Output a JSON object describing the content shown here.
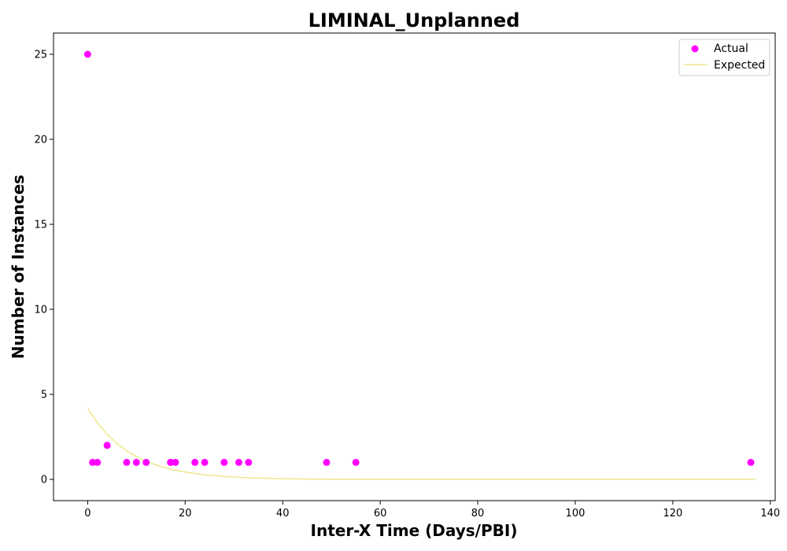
{
  "chart_data": {
    "type": "scatter",
    "title": "LIMINAL_Unplanned",
    "xlabel": "Inter-X Time (Days/PBI)",
    "ylabel": "Number of Instances",
    "xlim": [
      -7,
      141
    ],
    "ylim": [
      -1.25,
      26.25
    ],
    "xticks": [
      0,
      20,
      40,
      60,
      80,
      100,
      120,
      140
    ],
    "yticks": [
      0,
      5,
      10,
      15,
      20,
      25
    ],
    "grid": false,
    "legend_position": "top-right",
    "series": [
      {
        "name": "Actual",
        "kind": "scatter",
        "color": "#ff00ff",
        "x": [
          0,
          1,
          2,
          4,
          8,
          10,
          12,
          17,
          18,
          22,
          24,
          28,
          31,
          33,
          49,
          55,
          136
        ],
        "y": [
          25,
          1,
          1,
          2,
          1,
          1,
          1,
          1,
          1,
          1,
          1,
          1,
          1,
          1,
          1,
          1,
          1
        ]
      },
      {
        "name": "Expected",
        "kind": "line",
        "color": "#f0e68c",
        "x": [
          0,
          2,
          4,
          6,
          8,
          10,
          12,
          14,
          16,
          18,
          20,
          24,
          28,
          32,
          36,
          40,
          45,
          50,
          55,
          60,
          70,
          80,
          90,
          100,
          110,
          120,
          130,
          137
        ],
        "y": [
          4.18,
          3.33,
          2.65,
          2.11,
          1.68,
          1.34,
          1.06,
          0.85,
          0.67,
          0.54,
          0.43,
          0.27,
          0.17,
          0.11,
          0.07,
          0.04,
          0.02,
          0.01,
          0.01,
          0.0,
          0.0,
          0.0,
          0.0,
          0.0,
          0.0,
          0.0,
          0.0,
          0.0
        ]
      }
    ]
  }
}
